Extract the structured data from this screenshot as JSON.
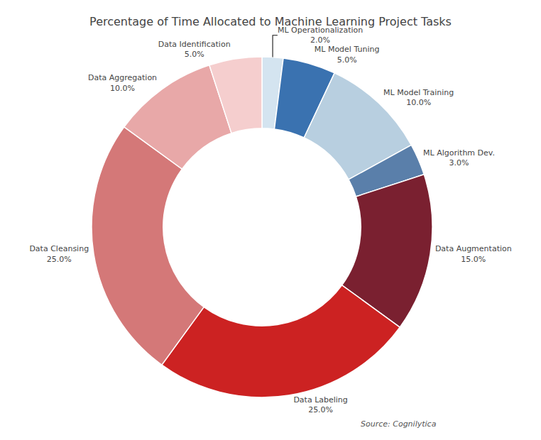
{
  "chart_data": {
    "type": "donut",
    "title": "Percentage of Time Allocated to Machine Learning Project Tasks",
    "categories": [
      "ML Operationalization",
      "ML Model Tuning",
      "ML Model Training",
      "ML Algorithm Dev.",
      "Data Augmentation",
      "Data Labeling",
      "Data Cleansing",
      "Data Aggregation",
      "Data Identification"
    ],
    "values": [
      2.0,
      5.0,
      10.0,
      3.0,
      15.0,
      25.0,
      25.0,
      10.0,
      5.0
    ],
    "value_labels": [
      "2.0%",
      "5.0%",
      "10.0%",
      "3.0%",
      "15.0%",
      "25.0%",
      "25.0%",
      "10.0%",
      "5.0%"
    ],
    "colors": [
      "#d4e4f0",
      "#3a72b0",
      "#b8cfe0",
      "#5a7faa",
      "#7a2030",
      "#cc2222",
      "#d47878",
      "#e8a8a8",
      "#f5cece"
    ],
    "annotations": [
      "Source: Cognilytica"
    ]
  }
}
